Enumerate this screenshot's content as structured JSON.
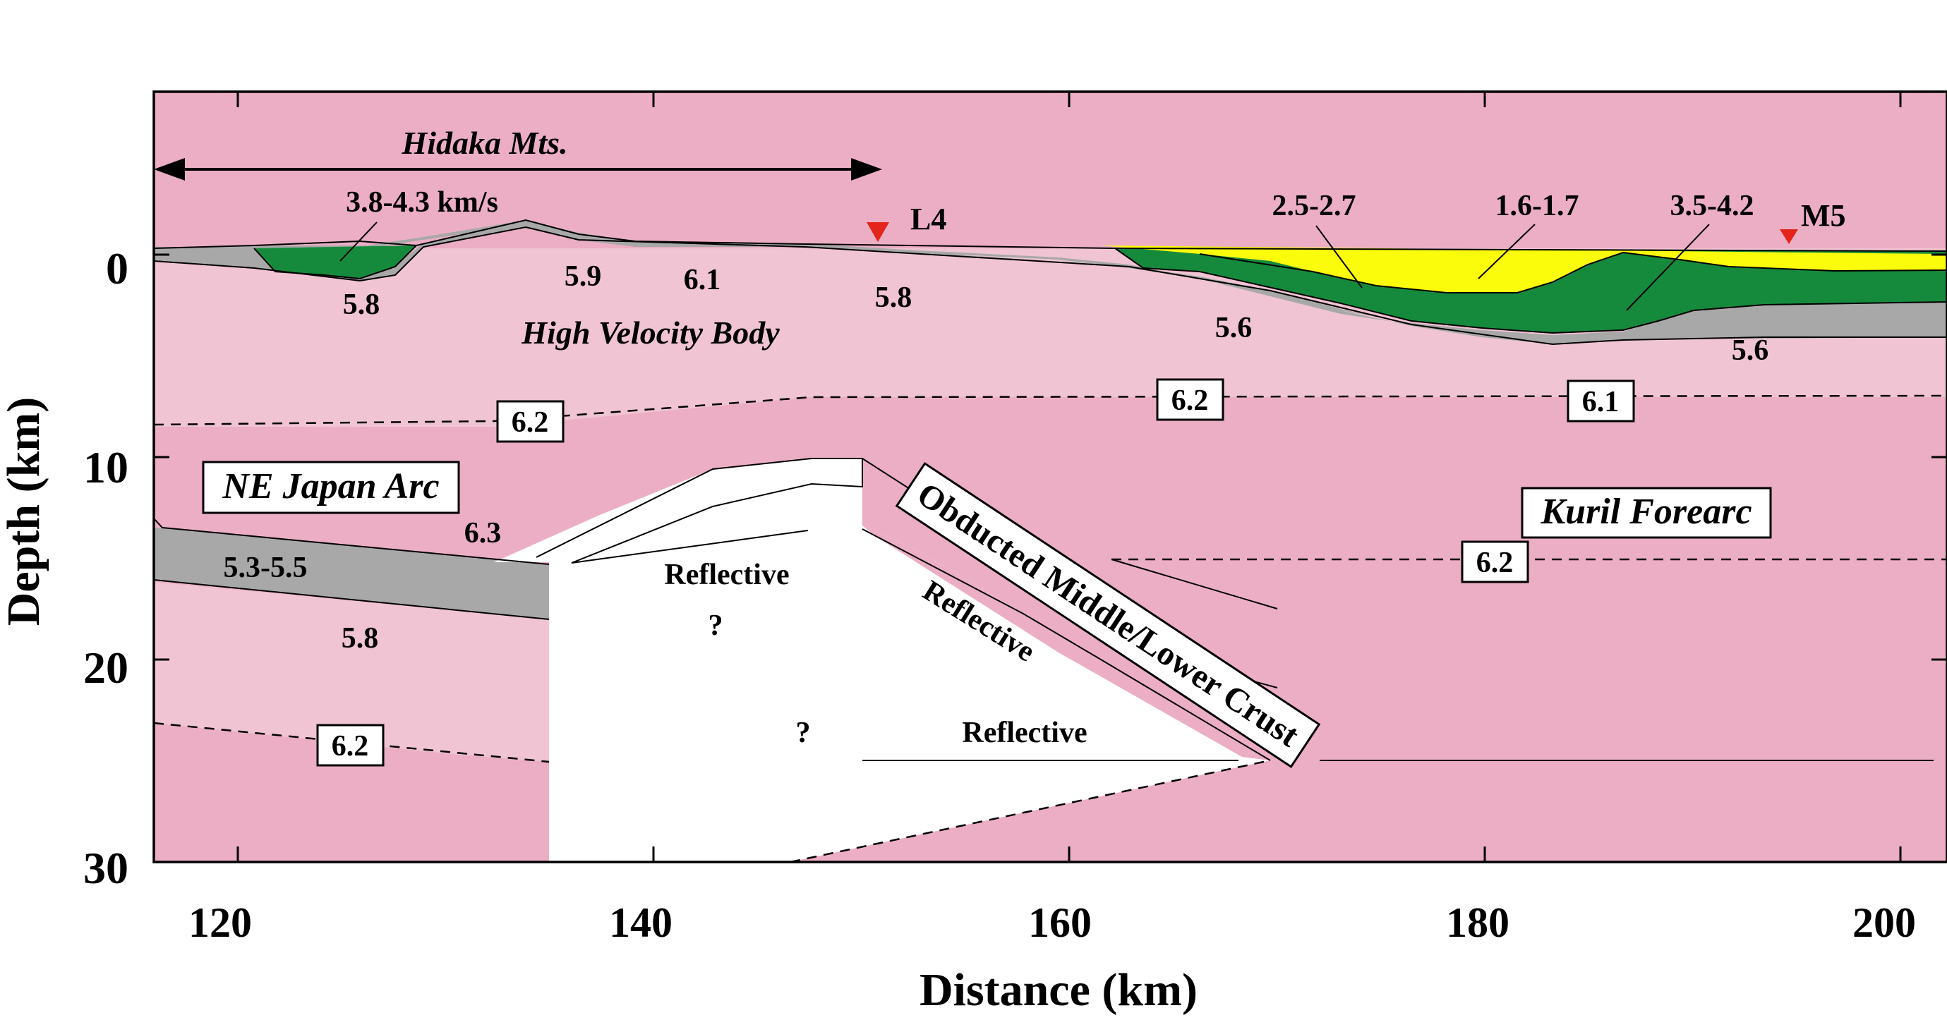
{
  "axes": {
    "x_label": "Distance (km)",
    "y_label": "Depth (km)",
    "x_ticks": [
      "120",
      "140",
      "160",
      "180",
      "200"
    ],
    "y_ticks": [
      "0",
      "10",
      "20",
      "30"
    ],
    "x_range_km": [
      116,
      202
    ],
    "y_range_km": [
      -8,
      30
    ]
  },
  "labels": {
    "hidaka": "Hidaka Mts.",
    "l4": "L4",
    "m5": "M5",
    "v_38_43": "3.8-4.3 km/s",
    "v_25_27": "2.5-2.7",
    "v_16_17": "1.6-1.7",
    "v_35_42": "3.5-4.2",
    "v58_a": "5.8",
    "v59": "5.9",
    "v61": "6.1",
    "v58_b": "5.8",
    "v56_a": "5.6",
    "v56_b": "5.6",
    "hvb": "High Velocity Body",
    "box62_a": "6.2",
    "box62_b": "6.2",
    "box61": "6.1",
    "ne_japan": "NE Japan Arc",
    "kuril": "Kuril Forearc",
    "v63": "6.3",
    "v5355": "5.3-5.5",
    "v58_c": "5.8",
    "refl_a": "Reflective",
    "q_a": "?",
    "q_b": "?",
    "refl_b": "Reflective",
    "refl_c": "Reflective",
    "obducted": "Obducted Middle/Lower Crust",
    "box62_c": "6.2",
    "box62_d": "6.2"
  },
  "colors": {
    "pink_light": "#f0c4d3",
    "pink_dark": "#ecaec5",
    "gray": "#a8a8a8",
    "green": "#168a3c",
    "yellow": "#fbfb0c",
    "station": "#e3241b"
  }
}
